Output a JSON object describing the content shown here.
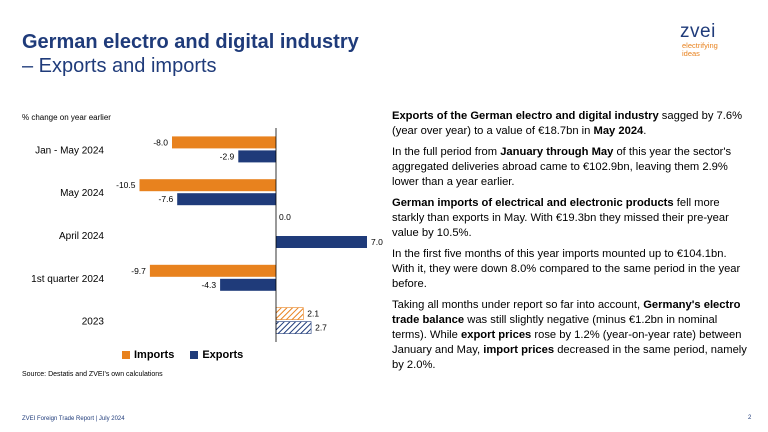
{
  "header": {
    "title_line1": "German electro and digital industry",
    "title_line2": "– Exports and imports"
  },
  "logo": {
    "brand": "zvei",
    "tagline_1": "electrifying",
    "tagline_2": "ideas"
  },
  "colors": {
    "title": "#1f3b7a",
    "imports": "#e8821e",
    "exports": "#1f3b7a"
  },
  "chart_data": {
    "type": "bar",
    "orientation": "horizontal",
    "unit_label": "% change on year earlier",
    "categories": [
      "Jan - May 2024",
      "May 2024",
      "April 2024",
      "1st quarter 2024",
      "2023"
    ],
    "series": [
      {
        "name": "Imports",
        "values": [
          -8.0,
          -10.5,
          0.0,
          -9.7,
          2.1
        ],
        "labels": [
          "-8.0",
          "-10.5",
          "0.0",
          "-9.7",
          "2.1"
        ]
      },
      {
        "name": "Exports",
        "values": [
          -2.9,
          -7.6,
          7.0,
          -4.3,
          2.7
        ],
        "labels": [
          "-2.9",
          "-7.6",
          "7.0",
          "-4.3",
          "2.7"
        ]
      }
    ],
    "hatched_category": "2023",
    "xlim": [
      -12,
      8
    ],
    "grid": false,
    "legend_position": "bottom-left"
  },
  "source": "Source: Destatis and ZVEI's own calculations",
  "text_panel": {
    "p1": [
      {
        "t": "Exports of the German electro and digital industry",
        "b": true
      },
      {
        "t": " sagged by 7.6% (year over year) to a value of €18.7bn in ",
        "b": false
      },
      {
        "t": "May 2024",
        "b": true
      },
      {
        "t": ".",
        "b": false
      }
    ],
    "p2": [
      {
        "t": "In the full period from ",
        "b": false
      },
      {
        "t": "January through May",
        "b": true
      },
      {
        "t": " of this year the sector's aggregated deliveries abroad came to €102.9bn, leaving them 2.9% lower than a year earlier.",
        "b": false
      }
    ],
    "p3": [
      {
        "t": "German imports of electrical and electronic products",
        "b": true
      },
      {
        "t": " fell more starkly than exports in May. With €19.3bn they missed their pre-year value by 10.5%.",
        "b": false
      }
    ],
    "p4": [
      {
        "t": "In the first five months of this year imports mounted up to €104.1bn. With it, they were down 8.0% compared to the same period in the year before.",
        "b": false
      }
    ],
    "p5": [
      {
        "t": "Taking all months under report so far into account, ",
        "b": false
      },
      {
        "t": "Germany's electro trade balance",
        "b": true
      },
      {
        "t": " was still slightly negative (minus €1.2bn in nominal terms). While ",
        "b": false
      },
      {
        "t": "export prices",
        "b": true
      },
      {
        "t": " rose by 1.2% (year-on-year rate) between January and May, ",
        "b": false
      },
      {
        "t": "import prices",
        "b": true
      },
      {
        "t": " decreased in the same period, namely by 2.0%.",
        "b": false
      }
    ]
  },
  "footer": {
    "left": "ZVEI Foreign Trade Report | July 2024",
    "page": "2"
  }
}
